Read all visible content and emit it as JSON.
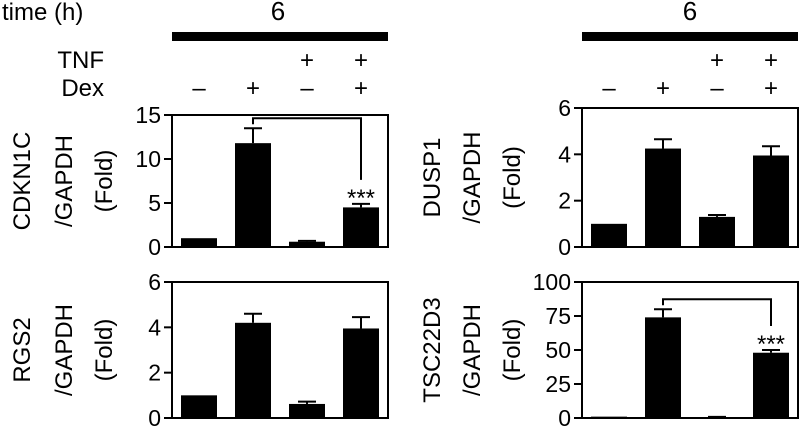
{
  "header": {
    "time_label": "time (h)",
    "left_time": "6",
    "right_time": "6",
    "tnf_label": "TNF",
    "dex_label": "Dex",
    "tnf_signs": [
      "",
      "",
      "+",
      "+"
    ],
    "dex_signs": [
      "–",
      "+",
      "–",
      "+"
    ]
  },
  "chart_data": [
    {
      "type": "bar",
      "ylabel_lines": [
        "CDKN1C",
        "/GAPDH",
        "(Fold)"
      ],
      "ylim": [
        0,
        15
      ],
      "yticks": [
        0,
        5,
        10,
        15
      ],
      "values": [
        1.0,
        11.8,
        0.6,
        4.5
      ],
      "errors": [
        0.0,
        1.7,
        0.1,
        0.4
      ],
      "significance": {
        "from": 1,
        "to": 3,
        "label": "***"
      }
    },
    {
      "type": "bar",
      "ylabel_lines": [
        "DUSP1",
        "/GAPDH",
        "(Fold)"
      ],
      "ylim": [
        0,
        6
      ],
      "yticks": [
        0,
        2,
        4,
        6
      ],
      "values": [
        1.0,
        4.25,
        1.3,
        3.95
      ],
      "errors": [
        0.0,
        0.4,
        0.08,
        0.4
      ],
      "significance": null
    },
    {
      "type": "bar",
      "ylabel_lines": [
        "RGS2",
        "/GAPDH",
        "(Fold)"
      ],
      "ylim": [
        0,
        6
      ],
      "yticks": [
        0,
        2,
        4,
        6
      ],
      "values": [
        1.0,
        4.2,
        0.62,
        3.95
      ],
      "errors": [
        0.0,
        0.4,
        0.1,
        0.5
      ],
      "significance": null
    },
    {
      "type": "bar",
      "ylabel_lines": [
        "TSC22D3",
        "/GAPDH",
        "(Fold)"
      ],
      "ylim": [
        0,
        100
      ],
      "yticks": [
        0,
        25,
        50,
        75,
        100
      ],
      "values": [
        1.0,
        74,
        0.7,
        48
      ],
      "errors": [
        0.0,
        6,
        0.1,
        2
      ],
      "significance": {
        "from": 1,
        "to": 3,
        "label": "***"
      }
    }
  ]
}
